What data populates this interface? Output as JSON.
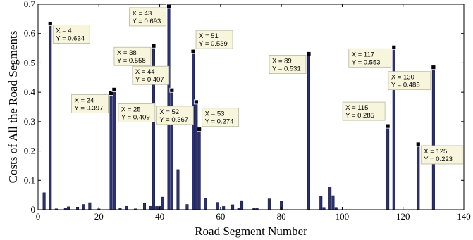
{
  "chart_data": {
    "type": "bar",
    "title": "",
    "xlabel": "Road Segment Number",
    "ylabel": "Costs of All the Road Segments",
    "xlim": [
      0,
      140
    ],
    "ylim": [
      0,
      0.7
    ],
    "xticks": [
      0,
      20,
      40,
      60,
      80,
      100,
      120,
      140
    ],
    "yticks": [
      0,
      0.1,
      0.2,
      0.3,
      0.4,
      0.5,
      0.6,
      0.7
    ],
    "grid": false,
    "legend": "none",
    "bar_color": "#2a2f7a",
    "bars": [
      {
        "x": 2,
        "y": 0.058
      },
      {
        "x": 4,
        "y": 0.634
      },
      {
        "x": 6,
        "y": 0.003
      },
      {
        "x": 9,
        "y": 0.006
      },
      {
        "x": 10,
        "y": 0.01
      },
      {
        "x": 13,
        "y": 0.009
      },
      {
        "x": 15,
        "y": 0.018
      },
      {
        "x": 17,
        "y": 0.024
      },
      {
        "x": 20,
        "y": 0.003
      },
      {
        "x": 24,
        "y": 0.397
      },
      {
        "x": 25,
        "y": 0.409
      },
      {
        "x": 27,
        "y": 0.004
      },
      {
        "x": 29,
        "y": 0.014
      },
      {
        "x": 32,
        "y": 0.003
      },
      {
        "x": 35,
        "y": 0.021
      },
      {
        "x": 37,
        "y": 0.014
      },
      {
        "x": 38,
        "y": 0.558
      },
      {
        "x": 39,
        "y": 0.011
      },
      {
        "x": 40,
        "y": 0.014
      },
      {
        "x": 41,
        "y": 0.043
      },
      {
        "x": 43,
        "y": 0.693
      },
      {
        "x": 44,
        "y": 0.407
      },
      {
        "x": 46,
        "y": 0.137
      },
      {
        "x": 49,
        "y": 0.018
      },
      {
        "x": 51,
        "y": 0.539
      },
      {
        "x": 52,
        "y": 0.367
      },
      {
        "x": 53,
        "y": 0.274
      },
      {
        "x": 55,
        "y": 0.039
      },
      {
        "x": 59,
        "y": 0.025
      },
      {
        "x": 61,
        "y": 0.011
      },
      {
        "x": 64,
        "y": 0.017
      },
      {
        "x": 66,
        "y": 0.006
      },
      {
        "x": 67,
        "y": 0.031
      },
      {
        "x": 71,
        "y": 0.004
      },
      {
        "x": 72,
        "y": 0.004
      },
      {
        "x": 76,
        "y": 0.037
      },
      {
        "x": 80,
        "y": 0.029
      },
      {
        "x": 89,
        "y": 0.531
      },
      {
        "x": 93,
        "y": 0.046
      },
      {
        "x": 94,
        "y": 0.008
      },
      {
        "x": 96,
        "y": 0.078
      },
      {
        "x": 97,
        "y": 0.048
      },
      {
        "x": 98,
        "y": 0.008
      },
      {
        "x": 115,
        "y": 0.285
      },
      {
        "x": 117,
        "y": 0.553
      },
      {
        "x": 125,
        "y": 0.223
      },
      {
        "x": 130,
        "y": 0.485
      }
    ],
    "annotation_style": {
      "box_fill": "#f7f5dc",
      "box_stroke": "#b8b8a0",
      "marker_color": "#000000"
    },
    "annotations": [
      {
        "x": 4,
        "y": 0.634,
        "x_text": "X = 4",
        "y_text": "Y = 0.634",
        "placement": "right"
      },
      {
        "x": 24,
        "y": 0.397,
        "x_text": "X = 24",
        "y_text": "Y = 0.397",
        "placement": "left"
      },
      {
        "x": 25,
        "y": 0.409,
        "x_text": "X = 25",
        "y_text": "Y = 0.409",
        "placement": "right-below"
      },
      {
        "x": 38,
        "y": 0.558,
        "x_text": "X = 38",
        "y_text": "Y = 0.558",
        "placement": "left"
      },
      {
        "x": 43,
        "y": 0.693,
        "x_text": "X = 43",
        "y_text": "Y = 0.693",
        "placement": "left"
      },
      {
        "x": 44,
        "y": 0.407,
        "x_text": "X = 44",
        "y_text": "Y = 0.407",
        "placement": "left-above"
      },
      {
        "x": 51,
        "y": 0.539,
        "x_text": "X = 51",
        "y_text": "Y = 0.539",
        "placement": "right-above"
      },
      {
        "x": 52,
        "y": 0.367,
        "x_text": "X = 52",
        "y_text": "Y = 0.367",
        "placement": "left-below"
      },
      {
        "x": 53,
        "y": 0.274,
        "x_text": "X = 53",
        "y_text": "Y = 0.274",
        "placement": "right-above"
      },
      {
        "x": 89,
        "y": 0.531,
        "x_text": "X = 89",
        "y_text": "Y = 0.531",
        "placement": "left"
      },
      {
        "x": 115,
        "y": 0.285,
        "x_text": "X = 115",
        "y_text": "Y = 0.285",
        "placement": "left-above"
      },
      {
        "x": 117,
        "y": 0.553,
        "x_text": "X = 117",
        "y_text": "Y = 0.553",
        "placement": "left"
      },
      {
        "x": 125,
        "y": 0.223,
        "x_text": "X = 125",
        "y_text": "Y = 0.223",
        "placement": "right"
      },
      {
        "x": 130,
        "y": 0.485,
        "x_text": "X = 130",
        "y_text": "Y = 0.485",
        "placement": "left-below"
      }
    ]
  }
}
